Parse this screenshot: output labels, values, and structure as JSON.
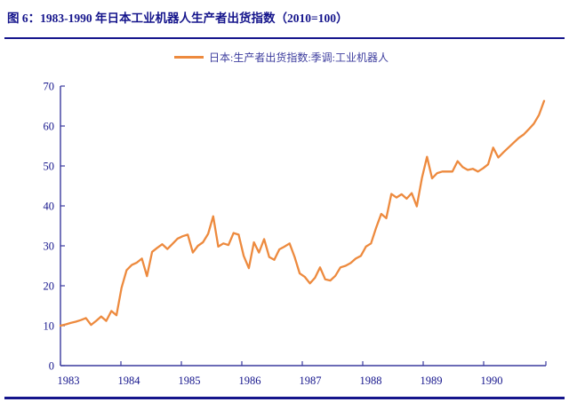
{
  "header": {
    "title": "图 6：1983-1990 年日本工业机器人生产者出货指数（2010=100）"
  },
  "legend": {
    "label": "日本:生产者出货指数:季调:工业机器人"
  },
  "colors": {
    "navy_text": "#15158C",
    "axis_line": "#3A3A9E",
    "series_orange": "#ED8A3E",
    "legend_text": "#3D3D9E"
  },
  "chart_data": {
    "type": "line",
    "title": "1983-1990 年日本工业机器人生产者出货指数（2010=100）",
    "frequency": "monthly",
    "x_start": "1983-01",
    "x_end": "1990-12",
    "x_tick_labels": [
      "1983",
      "1984",
      "1985",
      "1986",
      "1987",
      "1988",
      "1989",
      "1990"
    ],
    "y_ticks": [
      0,
      10,
      20,
      30,
      40,
      50,
      60,
      70
    ],
    "ylim": [
      0,
      70
    ],
    "grid": false,
    "legend_position": "top-center",
    "series": [
      {
        "name": "日本:生产者出货指数:季调:工业机器人",
        "values": [
          10.0,
          10.3,
          10.7,
          11.0,
          11.4,
          11.9,
          10.2,
          11.2,
          12.3,
          11.2,
          13.7,
          12.6,
          19.5,
          23.9,
          25.2,
          25.8,
          26.8,
          22.4,
          28.5,
          29.5,
          30.4,
          29.2,
          30.5,
          31.8,
          32.4,
          32.8,
          28.3,
          30.0,
          30.9,
          33.0,
          37.4,
          29.8,
          30.6,
          30.2,
          33.2,
          32.8,
          27.5,
          24.4,
          30.9,
          28.3,
          31.7,
          27.2,
          26.5,
          29.1,
          29.8,
          30.6,
          27.2,
          23.1,
          22.2,
          20.6,
          22.0,
          24.6,
          21.6,
          21.3,
          22.5,
          24.6,
          25.0,
          25.7,
          26.8,
          27.5,
          29.8,
          30.6,
          34.5,
          38.0,
          36.9,
          43.0,
          42.1,
          42.9,
          41.8,
          43.2,
          39.9,
          47.0,
          52.3,
          46.9,
          48.2,
          48.6,
          48.6,
          48.6,
          51.2,
          49.7,
          49.0,
          49.3,
          48.6,
          49.4,
          50.4,
          54.6,
          52.1,
          53.4,
          54.6,
          55.8,
          57.0,
          57.9,
          59.2,
          60.6,
          62.8,
          66.3
        ]
      }
    ]
  }
}
